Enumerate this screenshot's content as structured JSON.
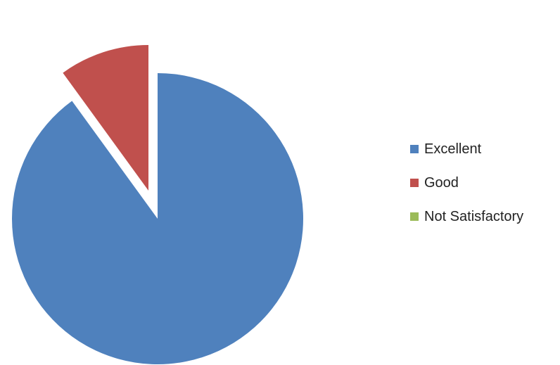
{
  "chart_data": {
    "type": "pie",
    "categories": [
      "Excellent",
      "Good",
      "Not Satisfactory"
    ],
    "values": [
      90,
      10,
      0
    ],
    "exploded": [
      "Good"
    ],
    "colors": [
      "#4f81bd",
      "#c0504d",
      "#9bbb59"
    ],
    "legend_position": "right",
    "title": ""
  }
}
